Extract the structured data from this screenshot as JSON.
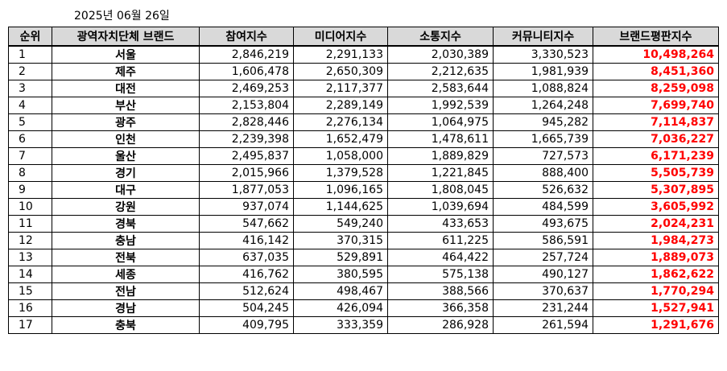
{
  "date": "2025년 06월 26일",
  "headers": {
    "rank": "순위",
    "region": "광역자치단체 브랜드",
    "participation": "참여지수",
    "media": "미디어지수",
    "communication": "소통지수",
    "community": "커뮤니티지수",
    "brand_reputation": "브랜드평판지수"
  },
  "colors": {
    "header_background": "#d9d9d9",
    "score_text": "#ff0000",
    "border": "#000000"
  },
  "rows": [
    {
      "rank": "1",
      "region": "서울",
      "participation": "2,846,219",
      "media": "2,291,133",
      "communication": "2,030,389",
      "community": "3,330,523",
      "brand_reputation": "10,498,264"
    },
    {
      "rank": "2",
      "region": "제주",
      "participation": "1,606,478",
      "media": "2,650,309",
      "communication": "2,212,635",
      "community": "1,981,939",
      "brand_reputation": "8,451,360"
    },
    {
      "rank": "3",
      "region": "대전",
      "participation": "2,469,253",
      "media": "2,117,377",
      "communication": "2,583,644",
      "community": "1,088,824",
      "brand_reputation": "8,259,098"
    },
    {
      "rank": "4",
      "region": "부산",
      "participation": "2,153,804",
      "media": "2,289,149",
      "communication": "1,992,539",
      "community": "1,264,248",
      "brand_reputation": "7,699,740"
    },
    {
      "rank": "5",
      "region": "광주",
      "participation": "2,828,446",
      "media": "2,276,134",
      "communication": "1,064,975",
      "community": "945,282",
      "brand_reputation": "7,114,837"
    },
    {
      "rank": "6",
      "region": "인천",
      "participation": "2,239,398",
      "media": "1,652,479",
      "communication": "1,478,611",
      "community": "1,665,739",
      "brand_reputation": "7,036,227"
    },
    {
      "rank": "7",
      "region": "울산",
      "participation": "2,495,837",
      "media": "1,058,000",
      "communication": "1,889,829",
      "community": "727,573",
      "brand_reputation": "6,171,239"
    },
    {
      "rank": "8",
      "region": "경기",
      "participation": "2,015,966",
      "media": "1,379,528",
      "communication": "1,221,845",
      "community": "888,400",
      "brand_reputation": "5,505,739"
    },
    {
      "rank": "9",
      "region": "대구",
      "participation": "1,877,053",
      "media": "1,096,165",
      "communication": "1,808,045",
      "community": "526,632",
      "brand_reputation": "5,307,895"
    },
    {
      "rank": "10",
      "region": "강원",
      "participation": "937,074",
      "media": "1,144,625",
      "communication": "1,039,694",
      "community": "484,599",
      "brand_reputation": "3,605,992"
    },
    {
      "rank": "11",
      "region": "경북",
      "participation": "547,662",
      "media": "549,240",
      "communication": "433,653",
      "community": "493,675",
      "brand_reputation": "2,024,231"
    },
    {
      "rank": "12",
      "region": "충남",
      "participation": "416,142",
      "media": "370,315",
      "communication": "611,225",
      "community": "586,591",
      "brand_reputation": "1,984,273"
    },
    {
      "rank": "13",
      "region": "전북",
      "participation": "637,035",
      "media": "529,891",
      "communication": "464,422",
      "community": "257,724",
      "brand_reputation": "1,889,073"
    },
    {
      "rank": "14",
      "region": "세종",
      "participation": "416,762",
      "media": "380,595",
      "communication": "575,138",
      "community": "490,127",
      "brand_reputation": "1,862,622"
    },
    {
      "rank": "15",
      "region": "전남",
      "participation": "512,624",
      "media": "498,467",
      "communication": "388,566",
      "community": "370,637",
      "brand_reputation": "1,770,294"
    },
    {
      "rank": "16",
      "region": "경남",
      "participation": "504,245",
      "media": "426,094",
      "communication": "366,358",
      "community": "231,244",
      "brand_reputation": "1,527,941"
    },
    {
      "rank": "17",
      "region": "충북",
      "participation": "409,795",
      "media": "333,359",
      "communication": "286,928",
      "community": "261,594",
      "brand_reputation": "1,291,676"
    }
  ]
}
